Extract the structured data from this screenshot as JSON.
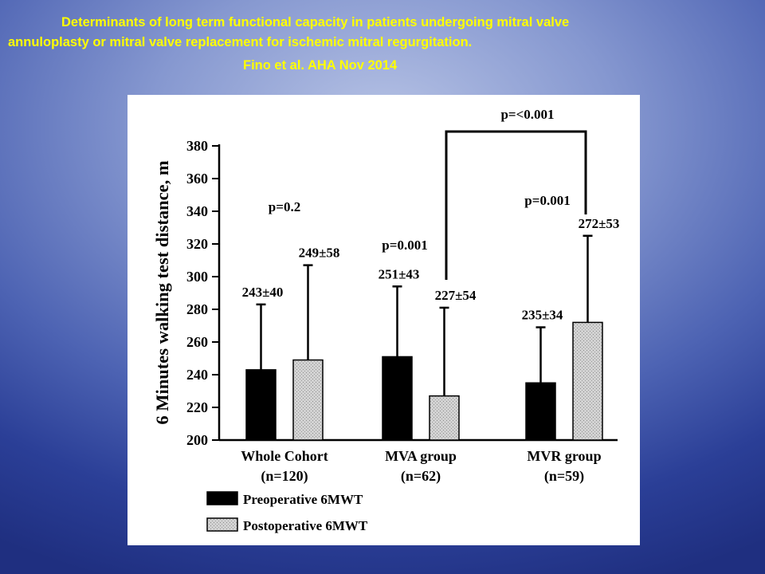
{
  "header": {
    "line1": "Determinants of long term functional capacity in patients undergoing mitral valve",
    "line2": "annuloplasty or mitral valve replacement for ischemic mitral regurgitation.",
    "line3": "Fino et al.   AHA Nov 2014"
  },
  "colors": {
    "title_text": "#ffff00",
    "pre_bar": "#000000",
    "post_bar": "#d2d2d2"
  },
  "chart_data": {
    "type": "bar",
    "ylabel": "6 Minutes walking test distance, m",
    "ylim": [
      200,
      380
    ],
    "yticks": [
      "200",
      "220",
      "240",
      "260",
      "280",
      "300",
      "320",
      "340",
      "360",
      "380"
    ],
    "grid": false,
    "legend_position": "bottom-left",
    "categories": [
      {
        "name": "Whole Cohort",
        "n": "(n=120)"
      },
      {
        "name": "MVA group",
        "n": "(n=62)"
      },
      {
        "name": "MVR group",
        "n": "(n=59)"
      }
    ],
    "series": [
      {
        "name": "Preoperative 6MWT",
        "values": [
          243,
          251,
          235
        ],
        "sd": [
          40,
          43,
          34
        ],
        "labels": [
          "243±40",
          "251±43",
          "235±34"
        ]
      },
      {
        "name": "Postoperative 6MWT",
        "values": [
          249,
          227,
          272
        ],
        "sd": [
          58,
          54,
          53
        ],
        "labels": [
          "249±58",
          "227±54",
          "272±53"
        ]
      }
    ],
    "group_pvalues": [
      "p=0.2",
      "p=0.001",
      "p=0.001"
    ],
    "bracket_pvalue": "p=<0.001"
  }
}
